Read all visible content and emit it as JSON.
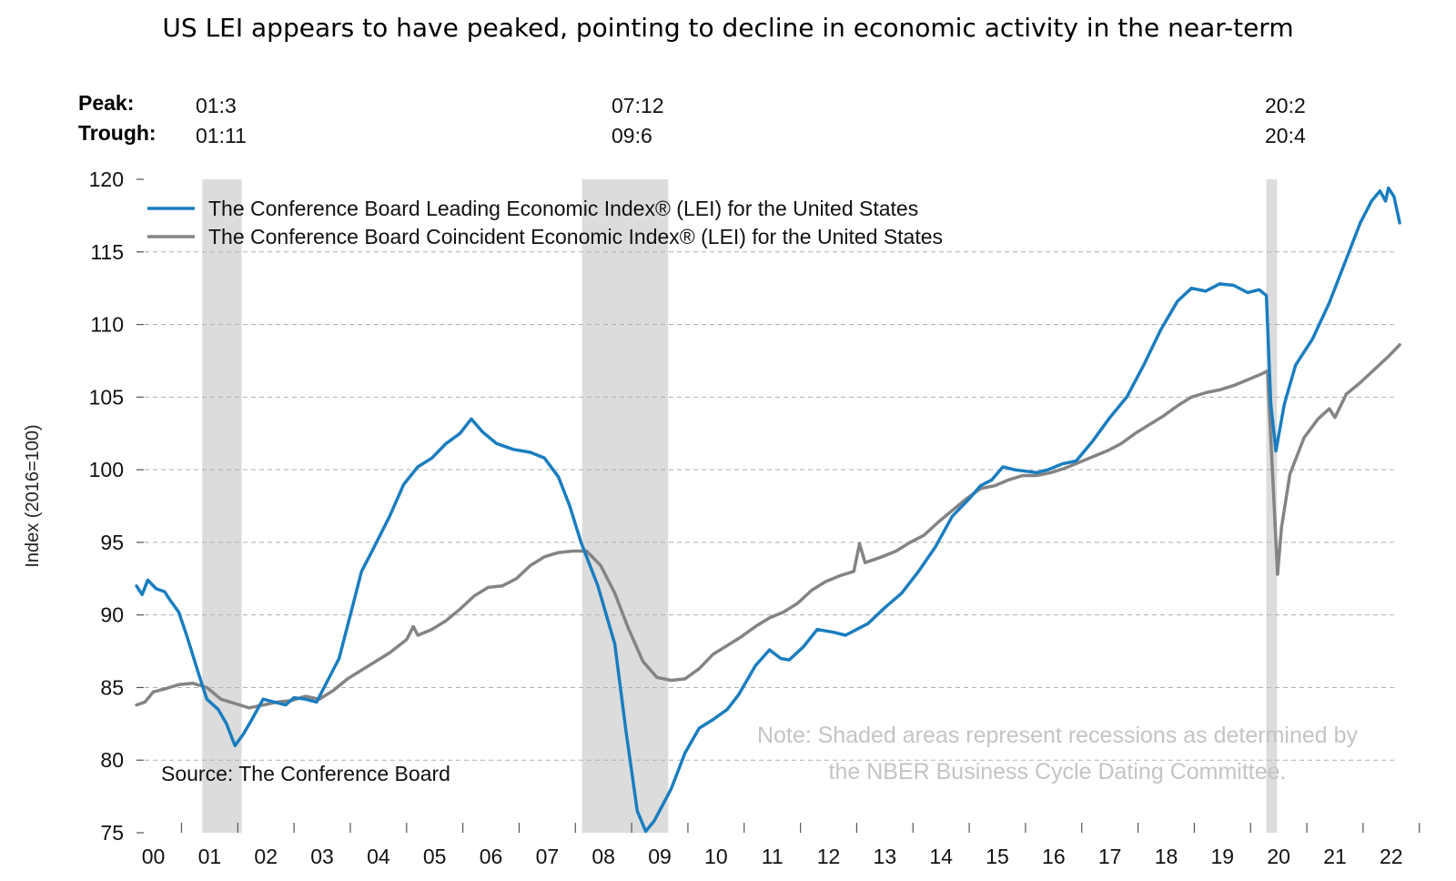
{
  "chart_data": {
    "type": "line",
    "title": "US LEI appears to have peaked, pointing to decline in economic activity in the near-term",
    "ylabel": "Index (2016=100)",
    "xlabel": "",
    "ylim": [
      75,
      120
    ],
    "yticks": [
      75,
      80,
      85,
      90,
      95,
      100,
      105,
      110,
      115,
      120
    ],
    "xlim": [
      2000,
      2022.4
    ],
    "xtick_labels": [
      "00",
      "01",
      "02",
      "03",
      "04",
      "05",
      "06",
      "07",
      "08",
      "09",
      "10",
      "11",
      "12",
      "13",
      "14",
      "15",
      "16",
      "17",
      "18",
      "19",
      "20",
      "21",
      "22"
    ],
    "grid": true,
    "legend_position": "top-left",
    "colors": {
      "lei": "#1a7dbf",
      "cei": "#848484",
      "recession": "#dcdcdc",
      "grid": "#b0b0b0"
    },
    "cycle_header": {
      "peak_label": "Peak:",
      "trough_label": "Trough:",
      "cycles": [
        {
          "peak": "01:3",
          "trough": "01:11"
        },
        {
          "peak": "07:12",
          "trough": "09:6"
        },
        {
          "peak": "20:2",
          "trough": "20:4"
        }
      ]
    },
    "recessions": [
      {
        "start": 2001.17,
        "end": 2001.87
      },
      {
        "start": 2007.92,
        "end": 2009.45
      },
      {
        "start": 2020.08,
        "end": 2020.27
      }
    ],
    "series": [
      {
        "name": "The Conference Board Leading Economic Index® (LEI) for the United States",
        "points": [
          [
            2000.0,
            92.0
          ],
          [
            2000.1,
            91.4
          ],
          [
            2000.2,
            92.4
          ],
          [
            2000.35,
            91.8
          ],
          [
            2000.5,
            91.6
          ],
          [
            2000.6,
            91.0
          ],
          [
            2000.75,
            90.2
          ],
          [
            2000.9,
            88.5
          ],
          [
            2001.1,
            86.0
          ],
          [
            2001.25,
            84.2
          ],
          [
            2001.45,
            83.5
          ],
          [
            2001.6,
            82.5
          ],
          [
            2001.75,
            81.0
          ],
          [
            2001.9,
            81.8
          ],
          [
            2002.05,
            82.8
          ],
          [
            2002.25,
            84.2
          ],
          [
            2002.45,
            84.0
          ],
          [
            2002.65,
            83.8
          ],
          [
            2002.8,
            84.3
          ],
          [
            2003.0,
            84.2
          ],
          [
            2003.2,
            84.0
          ],
          [
            2003.4,
            85.5
          ],
          [
            2003.6,
            87.0
          ],
          [
            2003.8,
            90.0
          ],
          [
            2004.0,
            93.0
          ],
          [
            2004.2,
            94.5
          ],
          [
            2004.5,
            96.8
          ],
          [
            2004.75,
            99.0
          ],
          [
            2005.0,
            100.2
          ],
          [
            2005.25,
            100.8
          ],
          [
            2005.5,
            101.8
          ],
          [
            2005.75,
            102.5
          ],
          [
            2005.95,
            103.5
          ],
          [
            2006.15,
            102.6
          ],
          [
            2006.4,
            101.8
          ],
          [
            2006.7,
            101.4
          ],
          [
            2007.0,
            101.2
          ],
          [
            2007.25,
            100.8
          ],
          [
            2007.5,
            99.5
          ],
          [
            2007.7,
            97.5
          ],
          [
            2007.9,
            95.0
          ],
          [
            2008.2,
            92.0
          ],
          [
            2008.5,
            88.0
          ],
          [
            2008.7,
            82.0
          ],
          [
            2008.9,
            76.5
          ],
          [
            2009.05,
            75.1
          ],
          [
            2009.2,
            75.8
          ],
          [
            2009.5,
            78.0
          ],
          [
            2009.75,
            80.5
          ],
          [
            2010.0,
            82.2
          ],
          [
            2010.25,
            82.8
          ],
          [
            2010.5,
            83.5
          ],
          [
            2010.7,
            84.5
          ],
          [
            2011.0,
            86.5
          ],
          [
            2011.25,
            87.6
          ],
          [
            2011.45,
            87.0
          ],
          [
            2011.6,
            86.9
          ],
          [
            2011.85,
            87.8
          ],
          [
            2012.1,
            89.0
          ],
          [
            2012.4,
            88.8
          ],
          [
            2012.6,
            88.6
          ],
          [
            2012.8,
            89.0
          ],
          [
            2013.0,
            89.4
          ],
          [
            2013.3,
            90.5
          ],
          [
            2013.6,
            91.5
          ],
          [
            2013.9,
            93.0
          ],
          [
            2014.2,
            94.7
          ],
          [
            2014.5,
            96.8
          ],
          [
            2014.8,
            98.0
          ],
          [
            2015.0,
            98.9
          ],
          [
            2015.2,
            99.3
          ],
          [
            2015.4,
            100.2
          ],
          [
            2015.6,
            100.0
          ],
          [
            2015.8,
            99.9
          ],
          [
            2016.0,
            99.8
          ],
          [
            2016.2,
            100.0
          ],
          [
            2016.45,
            100.4
          ],
          [
            2016.7,
            100.6
          ],
          [
            2017.0,
            102.0
          ],
          [
            2017.3,
            103.6
          ],
          [
            2017.6,
            105.0
          ],
          [
            2017.9,
            107.2
          ],
          [
            2018.2,
            109.6
          ],
          [
            2018.5,
            111.6
          ],
          [
            2018.75,
            112.5
          ],
          [
            2019.0,
            112.3
          ],
          [
            2019.25,
            112.8
          ],
          [
            2019.5,
            112.7
          ],
          [
            2019.75,
            112.2
          ],
          [
            2019.95,
            112.4
          ],
          [
            2020.08,
            112.0
          ],
          [
            2020.16,
            104.5
          ],
          [
            2020.25,
            101.3
          ],
          [
            2020.4,
            104.5
          ],
          [
            2020.6,
            107.2
          ],
          [
            2020.9,
            109.0
          ],
          [
            2021.2,
            111.5
          ],
          [
            2021.5,
            114.5
          ],
          [
            2021.75,
            117.0
          ],
          [
            2021.95,
            118.5
          ],
          [
            2022.1,
            119.2
          ],
          [
            2022.2,
            118.5
          ],
          [
            2022.25,
            119.4
          ],
          [
            2022.35,
            118.8
          ],
          [
            2022.45,
            117.0
          ]
        ]
      },
      {
        "name": "The Conference Board Coincident Economic Index® (LEI) for the United States",
        "points": [
          [
            2000.0,
            83.8
          ],
          [
            2000.15,
            84.0
          ],
          [
            2000.3,
            84.7
          ],
          [
            2000.5,
            84.9
          ],
          [
            2000.75,
            85.2
          ],
          [
            2001.0,
            85.3
          ],
          [
            2001.25,
            85.0
          ],
          [
            2001.5,
            84.2
          ],
          [
            2001.75,
            83.9
          ],
          [
            2002.0,
            83.6
          ],
          [
            2002.25,
            83.8
          ],
          [
            2002.5,
            84.0
          ],
          [
            2002.75,
            84.1
          ],
          [
            2003.0,
            84.4
          ],
          [
            2003.25,
            84.2
          ],
          [
            2003.5,
            84.8
          ],
          [
            2003.75,
            85.6
          ],
          [
            2004.0,
            86.2
          ],
          [
            2004.25,
            86.8
          ],
          [
            2004.5,
            87.4
          ],
          [
            2004.8,
            88.3
          ],
          [
            2004.92,
            89.2
          ],
          [
            2005.0,
            88.6
          ],
          [
            2005.25,
            89.0
          ],
          [
            2005.5,
            89.6
          ],
          [
            2005.75,
            90.4
          ],
          [
            2006.0,
            91.3
          ],
          [
            2006.25,
            91.9
          ],
          [
            2006.5,
            92.0
          ],
          [
            2006.75,
            92.5
          ],
          [
            2007.0,
            93.4
          ],
          [
            2007.25,
            94.0
          ],
          [
            2007.5,
            94.3
          ],
          [
            2007.75,
            94.4
          ],
          [
            2008.0,
            94.4
          ],
          [
            2008.25,
            93.4
          ],
          [
            2008.5,
            91.5
          ],
          [
            2008.75,
            89.0
          ],
          [
            2009.0,
            86.8
          ],
          [
            2009.25,
            85.7
          ],
          [
            2009.5,
            85.5
          ],
          [
            2009.75,
            85.6
          ],
          [
            2010.0,
            86.3
          ],
          [
            2010.25,
            87.3
          ],
          [
            2010.5,
            87.9
          ],
          [
            2010.75,
            88.5
          ],
          [
            2011.0,
            89.2
          ],
          [
            2011.25,
            89.8
          ],
          [
            2011.5,
            90.2
          ],
          [
            2011.75,
            90.8
          ],
          [
            2012.0,
            91.7
          ],
          [
            2012.25,
            92.3
          ],
          [
            2012.5,
            92.7
          ],
          [
            2012.75,
            93.0
          ],
          [
            2012.85,
            94.9
          ],
          [
            2012.95,
            93.6
          ],
          [
            2013.25,
            94.0
          ],
          [
            2013.5,
            94.4
          ],
          [
            2013.75,
            95.0
          ],
          [
            2014.0,
            95.5
          ],
          [
            2014.25,
            96.4
          ],
          [
            2014.5,
            97.2
          ],
          [
            2014.75,
            98.0
          ],
          [
            2015.0,
            98.7
          ],
          [
            2015.25,
            98.9
          ],
          [
            2015.5,
            99.3
          ],
          [
            2015.75,
            99.6
          ],
          [
            2016.0,
            99.6
          ],
          [
            2016.25,
            99.8
          ],
          [
            2016.5,
            100.1
          ],
          [
            2016.75,
            100.5
          ],
          [
            2017.0,
            100.9
          ],
          [
            2017.25,
            101.3
          ],
          [
            2017.5,
            101.8
          ],
          [
            2017.75,
            102.5
          ],
          [
            2018.0,
            103.1
          ],
          [
            2018.25,
            103.7
          ],
          [
            2018.5,
            104.4
          ],
          [
            2018.75,
            105.0
          ],
          [
            2019.0,
            105.3
          ],
          [
            2019.25,
            105.5
          ],
          [
            2019.5,
            105.8
          ],
          [
            2019.75,
            106.2
          ],
          [
            2020.0,
            106.6
          ],
          [
            2020.1,
            106.8
          ],
          [
            2020.2,
            99.0
          ],
          [
            2020.28,
            92.8
          ],
          [
            2020.35,
            96.0
          ],
          [
            2020.5,
            99.7
          ],
          [
            2020.75,
            102.2
          ],
          [
            2021.0,
            103.5
          ],
          [
            2021.2,
            104.2
          ],
          [
            2021.3,
            103.6
          ],
          [
            2021.5,
            105.2
          ],
          [
            2021.75,
            106.0
          ],
          [
            2022.0,
            106.9
          ],
          [
            2022.25,
            107.8
          ],
          [
            2022.45,
            108.6
          ]
        ]
      }
    ],
    "source": "Source: The Conference Board",
    "note_lines": [
      "Note: Shaded areas represent recessions as determined by",
      "the NBER Business Cycle Dating Committee."
    ]
  }
}
